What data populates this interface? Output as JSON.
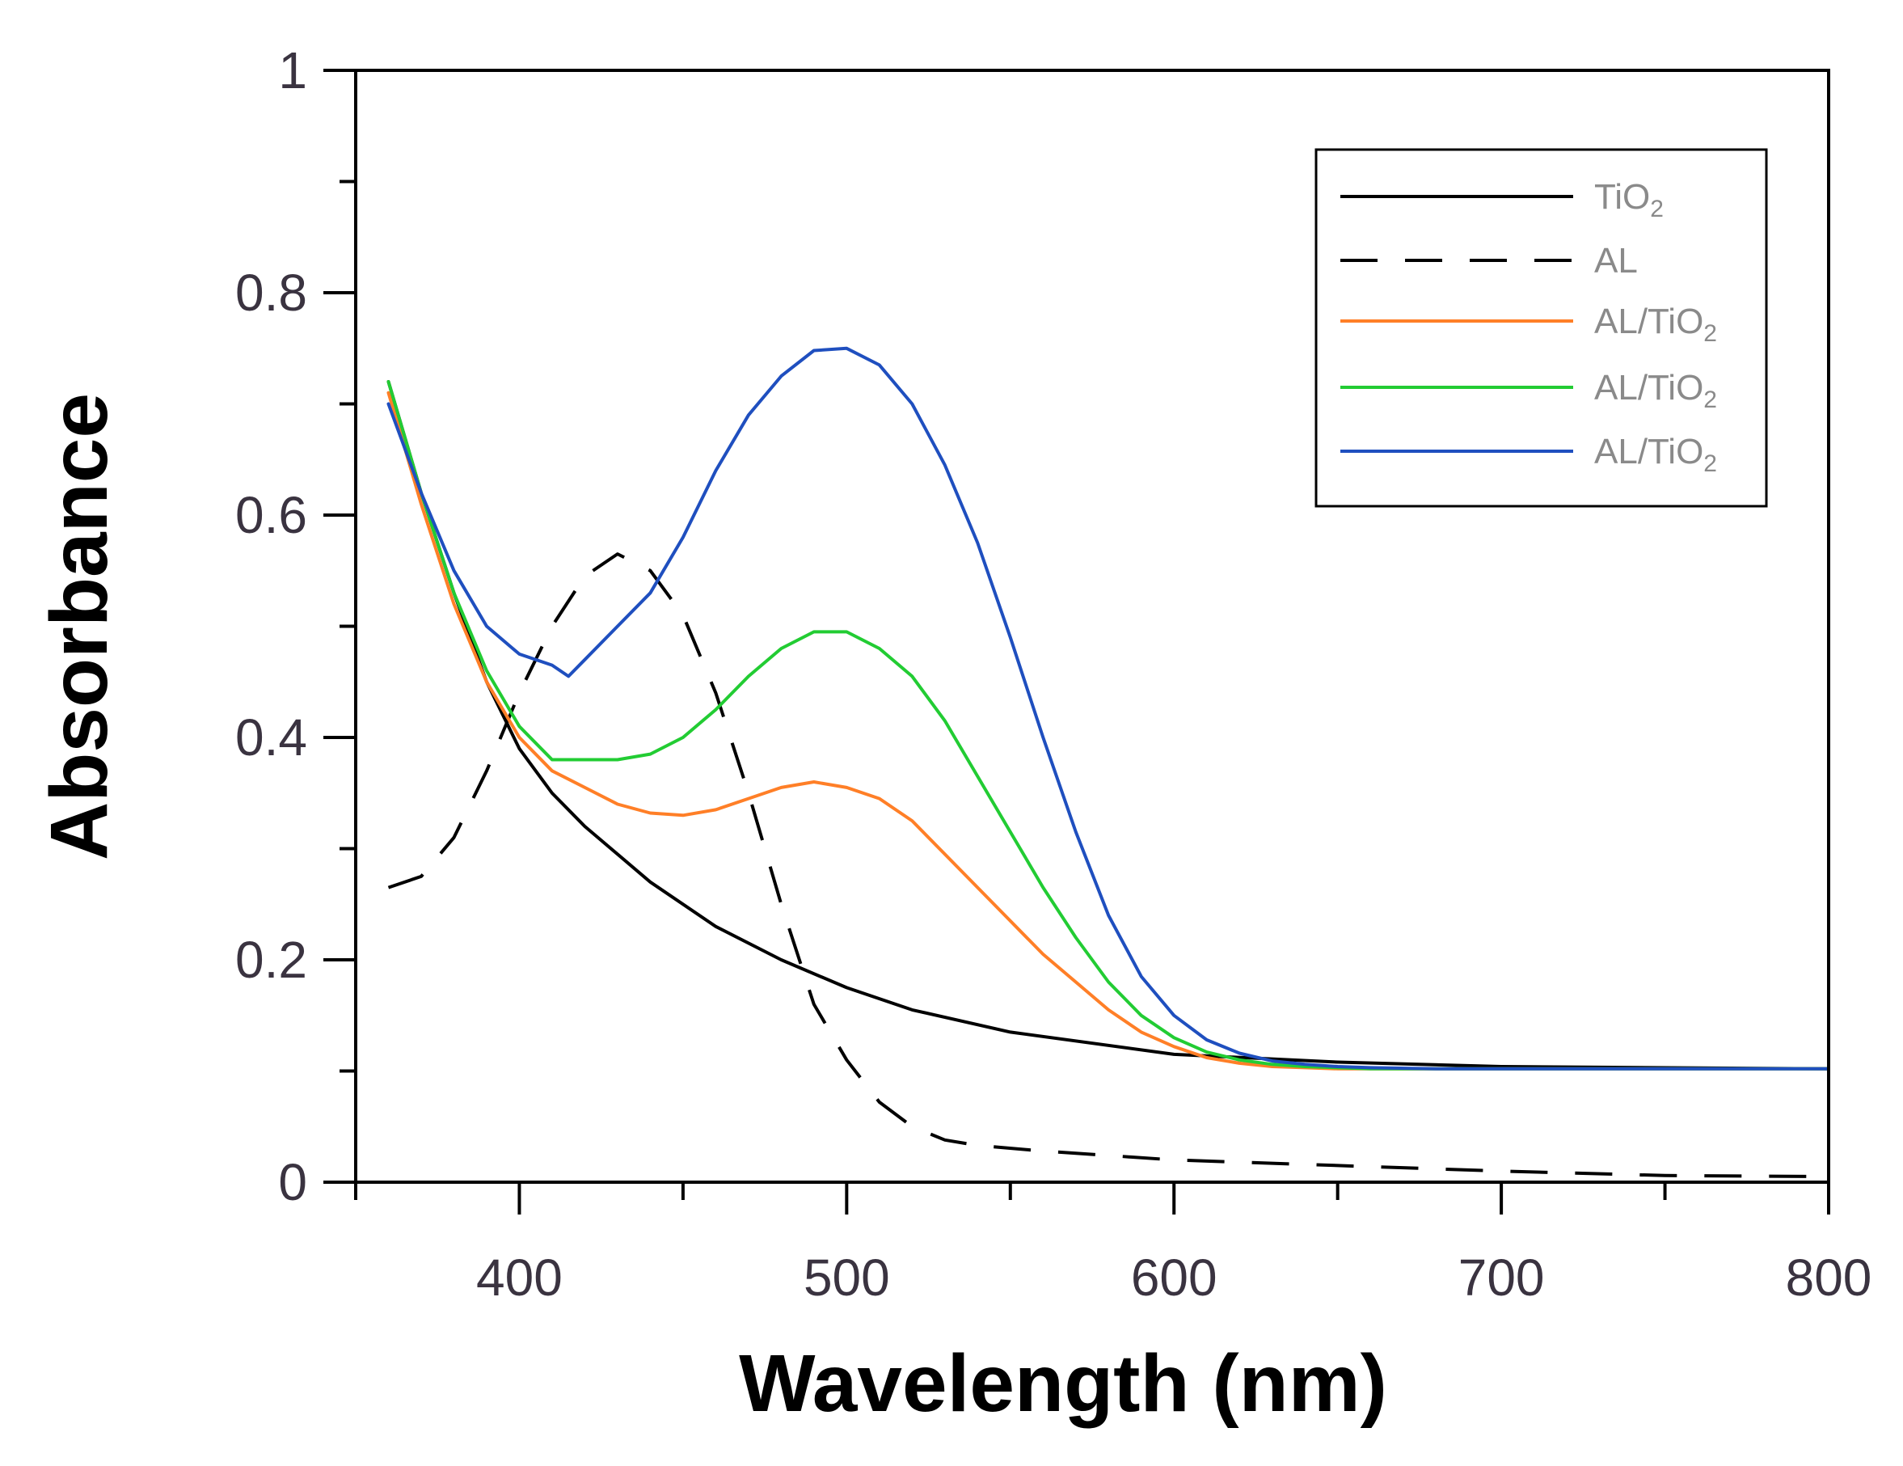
{
  "chart_data": {
    "type": "line",
    "title": "",
    "xlabel": "Wavelength (nm)",
    "ylabel": "Absorbance",
    "xlim": [
      350,
      800
    ],
    "ylim": [
      0,
      1
    ],
    "x_ticks": [
      400,
      500,
      600,
      700,
      800
    ],
    "x_minor_ticks": [
      350,
      450,
      550,
      650,
      750
    ],
    "y_ticks": [
      0,
      0.2,
      0.4,
      0.6,
      0.8,
      1
    ],
    "y_tick_labels": [
      "0",
      "0.2",
      "0.4",
      "0.6",
      "0.8",
      "1"
    ],
    "y_minor_ticks": [
      0.1,
      0.3,
      0.5,
      0.7,
      0.9
    ],
    "grid": false,
    "legend_position": "top-right",
    "series": [
      {
        "name": "TiO2",
        "label_main": "TiO",
        "label_sub": "2",
        "color": "#000000",
        "style": "solid",
        "x": [
          360,
          370,
          380,
          390,
          400,
          410,
          420,
          440,
          460,
          480,
          500,
          520,
          550,
          600,
          650,
          700,
          800
        ],
        "y": [
          0.72,
          0.62,
          0.53,
          0.45,
          0.39,
          0.35,
          0.32,
          0.27,
          0.23,
          0.2,
          0.175,
          0.155,
          0.135,
          0.115,
          0.108,
          0.104,
          0.102
        ]
      },
      {
        "name": "AL",
        "label_main": "AL",
        "label_sub": "",
        "color": "#000000",
        "style": "dashed",
        "x": [
          360,
          370,
          380,
          390,
          400,
          410,
          420,
          430,
          440,
          450,
          460,
          470,
          480,
          490,
          500,
          510,
          520,
          530,
          540,
          560,
          600,
          650,
          700,
          750,
          800
        ],
        "y": [
          0.265,
          0.275,
          0.31,
          0.37,
          0.44,
          0.5,
          0.545,
          0.565,
          0.55,
          0.51,
          0.44,
          0.35,
          0.25,
          0.16,
          0.11,
          0.072,
          0.05,
          0.038,
          0.033,
          0.028,
          0.02,
          0.015,
          0.01,
          0.006,
          0.005
        ]
      },
      {
        "name": "AL/TiO2 (orange)",
        "label_main": "AL/TiO",
        "label_sub": "2",
        "color": "#ff7f27",
        "style": "solid",
        "x": [
          360,
          370,
          380,
          390,
          400,
          410,
          420,
          430,
          440,
          450,
          460,
          470,
          480,
          490,
          500,
          510,
          520,
          530,
          540,
          550,
          560,
          570,
          580,
          590,
          600,
          610,
          620,
          630,
          640,
          650,
          660,
          680,
          700,
          800
        ],
        "y": [
          0.71,
          0.61,
          0.52,
          0.45,
          0.4,
          0.37,
          0.355,
          0.34,
          0.332,
          0.33,
          0.335,
          0.345,
          0.355,
          0.36,
          0.355,
          0.345,
          0.325,
          0.295,
          0.265,
          0.235,
          0.205,
          0.18,
          0.155,
          0.135,
          0.122,
          0.112,
          0.107,
          0.104,
          0.103,
          0.102,
          0.102,
          0.102,
          0.102,
          0.102
        ]
      },
      {
        "name": "AL/TiO2 (green)",
        "label_main": "AL/TiO",
        "label_sub": "2",
        "color": "#22cc33",
        "style": "solid",
        "x": [
          360,
          370,
          380,
          390,
          400,
          410,
          420,
          430,
          440,
          450,
          460,
          470,
          480,
          490,
          500,
          510,
          520,
          530,
          540,
          550,
          560,
          570,
          580,
          590,
          600,
          610,
          620,
          630,
          640,
          650,
          660,
          680,
          700,
          800
        ],
        "y": [
          0.72,
          0.62,
          0.53,
          0.46,
          0.41,
          0.38,
          0.38,
          0.38,
          0.385,
          0.4,
          0.425,
          0.455,
          0.48,
          0.495,
          0.495,
          0.48,
          0.455,
          0.415,
          0.365,
          0.315,
          0.265,
          0.22,
          0.18,
          0.15,
          0.13,
          0.117,
          0.11,
          0.106,
          0.104,
          0.103,
          0.102,
          0.102,
          0.102,
          0.102
        ]
      },
      {
        "name": "AL/TiO2 (blue)",
        "label_main": "AL/TiO",
        "label_sub": "2",
        "color": "#1f4fbf",
        "style": "solid",
        "x": [
          360,
          370,
          380,
          390,
          400,
          410,
          415,
          420,
          430,
          440,
          450,
          460,
          470,
          480,
          490,
          500,
          510,
          520,
          530,
          540,
          550,
          560,
          570,
          580,
          590,
          600,
          610,
          620,
          630,
          640,
          650,
          660,
          680,
          700,
          800
        ],
        "y": [
          0.7,
          0.62,
          0.55,
          0.5,
          0.475,
          0.465,
          0.455,
          0.47,
          0.5,
          0.53,
          0.58,
          0.64,
          0.69,
          0.725,
          0.748,
          0.75,
          0.735,
          0.7,
          0.645,
          0.575,
          0.49,
          0.4,
          0.315,
          0.24,
          0.185,
          0.15,
          0.128,
          0.116,
          0.109,
          0.106,
          0.104,
          0.103,
          0.102,
          0.102,
          0.102
        ]
      }
    ]
  }
}
